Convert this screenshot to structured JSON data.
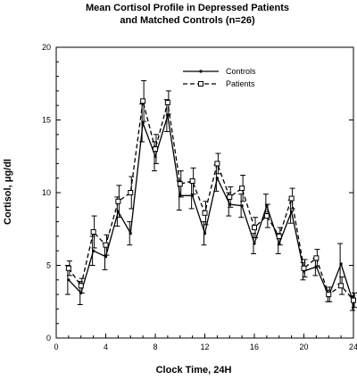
{
  "chart_data": {
    "type": "line",
    "title": "Mean Cortisol Profile in Depressed Patients",
    "subtitle": "and Matched Controls (n=26)",
    "xlabel": "Clock Time, 24H",
    "ylabel": "Cortisol, μg/dl",
    "xlim": [
      0,
      24
    ],
    "ylim": [
      0,
      20
    ],
    "xticks": [
      0,
      4,
      8,
      12,
      16,
      20,
      24
    ],
    "yticks": [
      0,
      5,
      10,
      15,
      20
    ],
    "grid": false,
    "legend_position": "top-right",
    "series": [
      {
        "name": "Controls",
        "style": "solid",
        "marker": "dot",
        "color": "#000000",
        "x": [
          1,
          2,
          3,
          4,
          5,
          6,
          7,
          8,
          9,
          10,
          11,
          12,
          13,
          14,
          15,
          16,
          17,
          18,
          19,
          20,
          21,
          22,
          23,
          24
        ],
        "y": [
          4.0,
          3.1,
          6.0,
          5.6,
          8.7,
          7.2,
          14.8,
          12.5,
          15.3,
          9.8,
          9.8,
          7.2,
          11.0,
          9.2,
          9.1,
          6.5,
          9.1,
          6.5,
          8.7,
          4.6,
          4.9,
          2.9,
          5.1,
          2.4
        ],
        "err": [
          1.0,
          0.8,
          1.0,
          0.9,
          1.0,
          0.8,
          1.3,
          1.0,
          1.1,
          1.0,
          0.9,
          0.8,
          0.9,
          0.8,
          0.8,
          0.7,
          0.8,
          0.7,
          0.8,
          0.6,
          0.6,
          0.4,
          1.4,
          0.5
        ]
      },
      {
        "name": "Patients",
        "style": "dashed",
        "marker": "square",
        "color": "#000000",
        "x": [
          1,
          2,
          3,
          4,
          5,
          6,
          7,
          8,
          9,
          10,
          11,
          12,
          13,
          14,
          15,
          16,
          17,
          18,
          19,
          20,
          21,
          22,
          23,
          24
        ],
        "y": [
          4.8,
          3.6,
          7.3,
          6.4,
          9.4,
          10.0,
          16.3,
          13.0,
          16.2,
          10.6,
          10.8,
          8.6,
          12.0,
          9.7,
          10.3,
          7.6,
          8.4,
          7.0,
          9.6,
          4.8,
          5.5,
          3.0,
          3.6,
          2.6
        ],
        "err": [
          0.5,
          0.5,
          1.1,
          0.7,
          1.1,
          1.1,
          1.4,
          1.0,
          0.8,
          0.9,
          0.9,
          0.8,
          0.7,
          0.7,
          0.9,
          0.7,
          0.8,
          0.6,
          0.7,
          0.6,
          0.6,
          0.5,
          0.6,
          0.5
        ]
      }
    ]
  }
}
